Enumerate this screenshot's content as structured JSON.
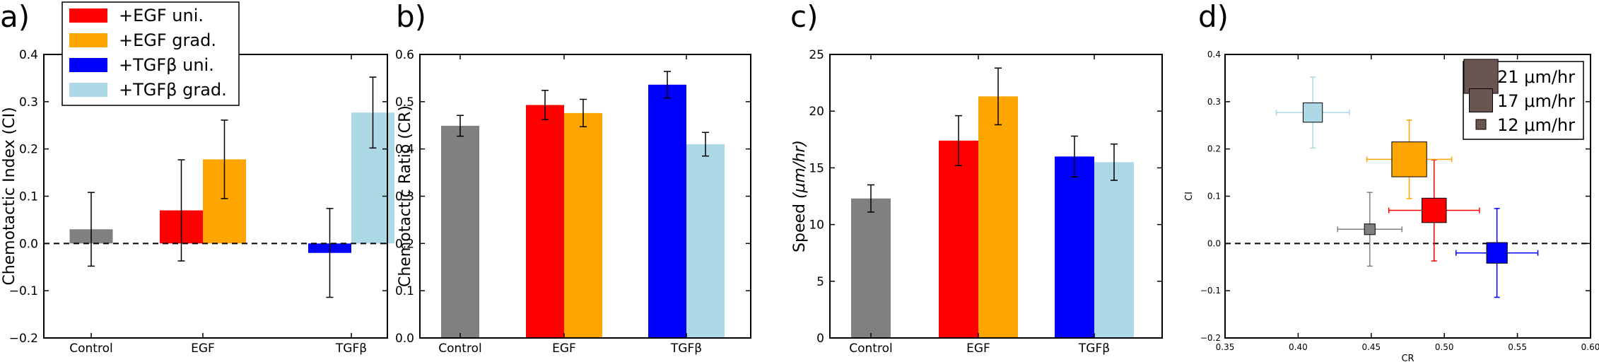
{
  "chart_data": [
    {
      "panel_label": "a)",
      "type": "bar",
      "ylabel": "Chemotactic Index (CI)",
      "ylim": [
        -0.2,
        0.4
      ],
      "yticks": [
        "−0.2",
        "−0.1",
        "0.0",
        "0.1",
        "0.2",
        "0.3",
        "0.4"
      ],
      "yticks_values": [
        -0.2,
        -0.1,
        0.0,
        0.1,
        0.2,
        0.3,
        0.4
      ],
      "categories": [
        "Control",
        "EGF",
        "TGFβ"
      ],
      "zero_line": "dashed",
      "bars": [
        {
          "category": "Control",
          "series": "Control",
          "value": 0.03,
          "err": 0.078,
          "color": "#808080"
        },
        {
          "category": "EGF",
          "series": "+EGF uni.",
          "value": 0.07,
          "err": 0.107,
          "color": "#ff0000"
        },
        {
          "category": "EGF",
          "series": "+EGF grad.",
          "value": 0.178,
          "err": 0.083,
          "color": "#ffa500"
        },
        {
          "category": "TGFβ",
          "series": "+TGFβ uni.",
          "value": -0.02,
          "err": 0.094,
          "color": "#0000ff"
        },
        {
          "category": "TGFβ",
          "series": "+TGFβ grad.",
          "value": 0.277,
          "err": 0.075,
          "color": "#add8e6"
        }
      ],
      "legend": {
        "placement": "top-left",
        "entries": [
          {
            "label": "+EGF uni.",
            "color": "#ff0000"
          },
          {
            "label": "+EGF grad.",
            "color": "#ffa500"
          },
          {
            "label": "+TGFβ uni.",
            "color": "#0000ff"
          },
          {
            "label": "+TGFβ grad.",
            "color": "#add8e6"
          }
        ]
      }
    },
    {
      "panel_label": "b)",
      "type": "bar",
      "ylabel": "Chemotactic Ratio (CR)",
      "ylim": [
        0.0,
        0.6
      ],
      "yticks": [
        "0.0",
        "0.1",
        "0.2",
        "0.3",
        "0.4",
        "0.5",
        "0.6"
      ],
      "yticks_values": [
        0.0,
        0.1,
        0.2,
        0.3,
        0.4,
        0.5,
        0.6
      ],
      "categories": [
        "Control",
        "EGF",
        "TGFβ"
      ],
      "bars": [
        {
          "category": "Control",
          "value": 0.449,
          "err": 0.022,
          "color": "#808080"
        },
        {
          "category": "EGF",
          "value": 0.493,
          "err": 0.031,
          "color": "#ff0000"
        },
        {
          "category": "EGF",
          "value": 0.476,
          "err": 0.029,
          "color": "#ffa500"
        },
        {
          "category": "TGFβ",
          "value": 0.536,
          "err": 0.028,
          "color": "#0000ff"
        },
        {
          "category": "TGFβ",
          "value": 0.41,
          "err": 0.025,
          "color": "#add8e6"
        }
      ]
    },
    {
      "panel_label": "c)",
      "type": "bar",
      "ylabel": "Speed",
      "ylabel_unit": "(μm/hr)",
      "ylim": [
        0,
        25
      ],
      "yticks": [
        "0",
        "5",
        "10",
        "15",
        "20",
        "25"
      ],
      "yticks_values": [
        0,
        5,
        10,
        15,
        20,
        25
      ],
      "categories": [
        "Control",
        "EGF",
        "TGFβ"
      ],
      "bars": [
        {
          "category": "Control",
          "value": 12.3,
          "err": 1.2,
          "color": "#808080"
        },
        {
          "category": "EGF",
          "value": 17.4,
          "err": 2.2,
          "color": "#ff0000"
        },
        {
          "category": "EGF",
          "value": 21.3,
          "err": 2.5,
          "color": "#ffa500"
        },
        {
          "category": "TGFβ",
          "value": 16.0,
          "err": 1.8,
          "color": "#0000ff"
        },
        {
          "category": "TGFβ",
          "value": 15.5,
          "err": 1.6,
          "color": "#add8e6"
        }
      ]
    },
    {
      "panel_label": "d)",
      "type": "scatter",
      "xlabel": "CR",
      "ylabel": "CI",
      "xlim": [
        0.35,
        0.6
      ],
      "ylim": [
        -0.2,
        0.4
      ],
      "xticks": [
        "0.35",
        "0.40",
        "0.45",
        "0.50",
        "0.55",
        "0.60"
      ],
      "xticks_values": [
        0.35,
        0.4,
        0.45,
        0.5,
        0.55,
        0.6
      ],
      "yticks": [
        "−0.2",
        "−0.1",
        "0.0",
        "0.1",
        "0.2",
        "0.3",
        "0.4"
      ],
      "yticks_values": [
        -0.2,
        -0.1,
        0.0,
        0.1,
        0.2,
        0.3,
        0.4
      ],
      "zero_line": "dashed",
      "points": [
        {
          "x": 0.449,
          "y": 0.03,
          "xerr": 0.022,
          "yerr": 0.078,
          "speed": 12.3,
          "color": "#808080"
        },
        {
          "x": 0.493,
          "y": 0.07,
          "xerr": 0.031,
          "yerr": 0.107,
          "speed": 17.4,
          "color": "#ff0000"
        },
        {
          "x": 0.476,
          "y": 0.178,
          "xerr": 0.029,
          "yerr": 0.083,
          "speed": 21.3,
          "color": "#ffa500"
        },
        {
          "x": 0.536,
          "y": -0.02,
          "xerr": 0.028,
          "yerr": 0.094,
          "speed": 16.0,
          "color": "#0000ff"
        },
        {
          "x": 0.41,
          "y": 0.277,
          "xerr": 0.025,
          "yerr": 0.075,
          "speed": 15.5,
          "color": "#add8e6"
        }
      ],
      "legend": {
        "placement": "top-right",
        "marker_color": "#6b5550",
        "entries": [
          {
            "label": "21 μm/hr",
            "speed": 21
          },
          {
            "label": "17 μm/hr",
            "speed": 17
          },
          {
            "label": "12 μm/hr",
            "speed": 12
          }
        ]
      }
    }
  ]
}
